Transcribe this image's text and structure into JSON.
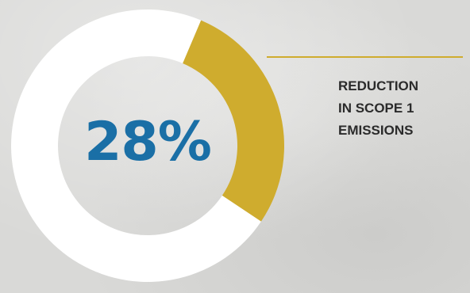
{
  "chart_data": {
    "type": "pie",
    "variant": "donut",
    "value_percent": 28,
    "remainder_percent": 72,
    "big_value_label": "28%",
    "annotation_lines": [
      "REDUCTION",
      "IN SCOPE 1",
      "EMISSIONS"
    ],
    "colors": {
      "highlight": "#CFAC2E",
      "remainder": "#FFFFFF",
      "value_text": "#1A6FA6",
      "leader_line": "#CFAC2E",
      "background": "#D9D9D7"
    }
  }
}
